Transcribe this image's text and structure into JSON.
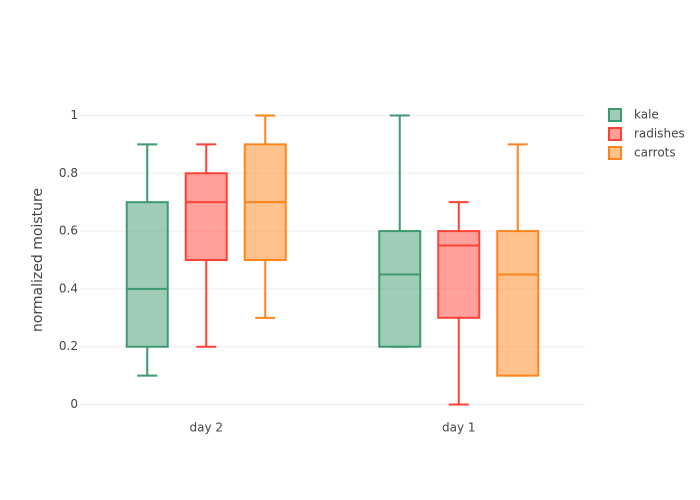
{
  "chart_data": {
    "type": "box",
    "y_label": "normalized moisture",
    "categories": [
      "day 2",
      "day 1"
    ],
    "ylim": [
      -0.05,
      1.05
    ],
    "yticks": [
      0,
      0.2,
      0.4,
      0.6,
      0.8,
      1
    ],
    "grid": true,
    "legend_position": "right",
    "series": [
      {
        "name": "kale",
        "color": "#3d9970",
        "min": [
          0.1,
          0.2
        ],
        "q1": [
          0.2,
          0.2
        ],
        "median": [
          0.4,
          0.45
        ],
        "q3": [
          0.7,
          0.6
        ],
        "max": [
          0.9,
          1
        ]
      },
      {
        "name": "radishes",
        "color": "#ff4136",
        "min": [
          0.2,
          0
        ],
        "q1": [
          0.5,
          0.3
        ],
        "median": [
          0.7,
          0.55
        ],
        "q3": [
          0.8,
          0.6
        ],
        "max": [
          0.9,
          0.7
        ]
      },
      {
        "name": "carrots",
        "color": "#ff851b",
        "min": [
          0.3,
          0.1
        ],
        "q1": [
          0.5,
          0.1
        ],
        "median": [
          0.7,
          0.45
        ],
        "q3": [
          0.9,
          0.6
        ],
        "max": [
          1,
          0.9
        ]
      }
    ]
  }
}
